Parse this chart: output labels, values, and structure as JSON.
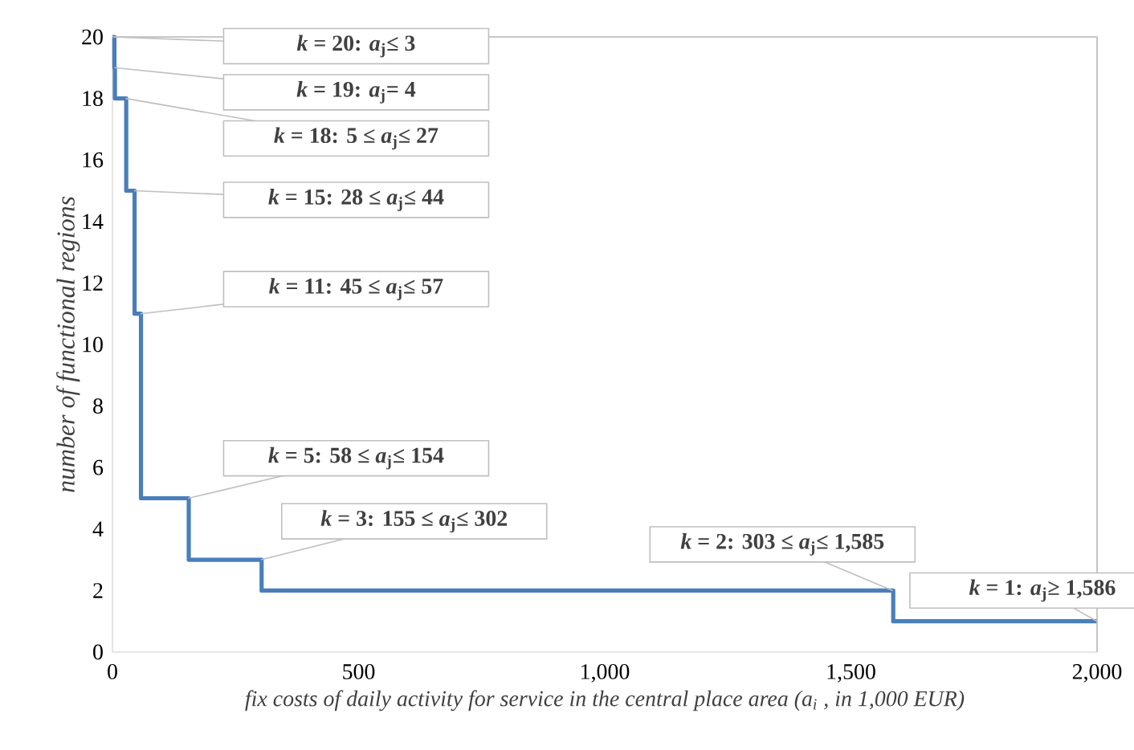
{
  "chart_data": {
    "type": "step",
    "xlabel": "fix costs of daily activity for service in the central place area (a$_{i}$ , in 1,000 EUR)",
    "ylabel": "number of functional regions",
    "x": [
      0,
      4,
      5,
      28,
      45,
      58,
      155,
      303,
      1586,
      2000
    ],
    "series": [
      {
        "color": "#4a7ebb",
        "values": [
          20,
          19,
          18,
          15,
          11,
          5,
          3,
          2,
          1,
          1
        ]
      }
    ],
    "xlim": [
      0,
      2000
    ],
    "ylim": [
      0,
      20
    ],
    "xticks": [
      0,
      500,
      {
        "value": 1000,
        "label": "1,000"
      },
      {
        "value": 1500,
        "label": "1,500"
      },
      {
        "value": 2000,
        "label": "2,000"
      }
    ],
    "yticks": [
      0,
      2,
      4,
      6,
      8,
      10,
      12,
      14,
      16,
      18,
      20
    ],
    "annotations": [
      {
        "text": "*k* = 20: *a*$_{j}$≤ 3",
        "x": 3,
        "y": 20
      },
      {
        "text": "*k* = 19:  *a*$_{j}$= 4",
        "x": 4,
        "y": 19
      },
      {
        "text": "*k* = 18: 5 ≤ *a*$_{j}$≤ 27",
        "x": 27,
        "y": 18
      },
      {
        "text": "*k* = 15: 28 ≤ *a*$_{j}$≤ 44",
        "x": 44,
        "y": 15
      },
      {
        "text": "*k* = 11: 45 ≤ *a*$_{j}$≤ 57",
        "x": 57,
        "y": 11
      },
      {
        "text": "*k* = 5: 58 ≤ *a*$_{j}$≤ 154",
        "x": 154,
        "y": 5
      },
      {
        "text": "*k* = 3: 155 ≤ *a*$_{j}$≤ 302",
        "x": 302,
        "y": 3
      },
      {
        "text": "*k* = 2: 303 ≤ *a*$_{j}$≤ 1,585",
        "x": 1585,
        "y": 2
      },
      {
        "text": "*k* = 1: *a*$_{j}$≥ 1,586",
        "x": 2000,
        "y": 1
      }
    ]
  }
}
